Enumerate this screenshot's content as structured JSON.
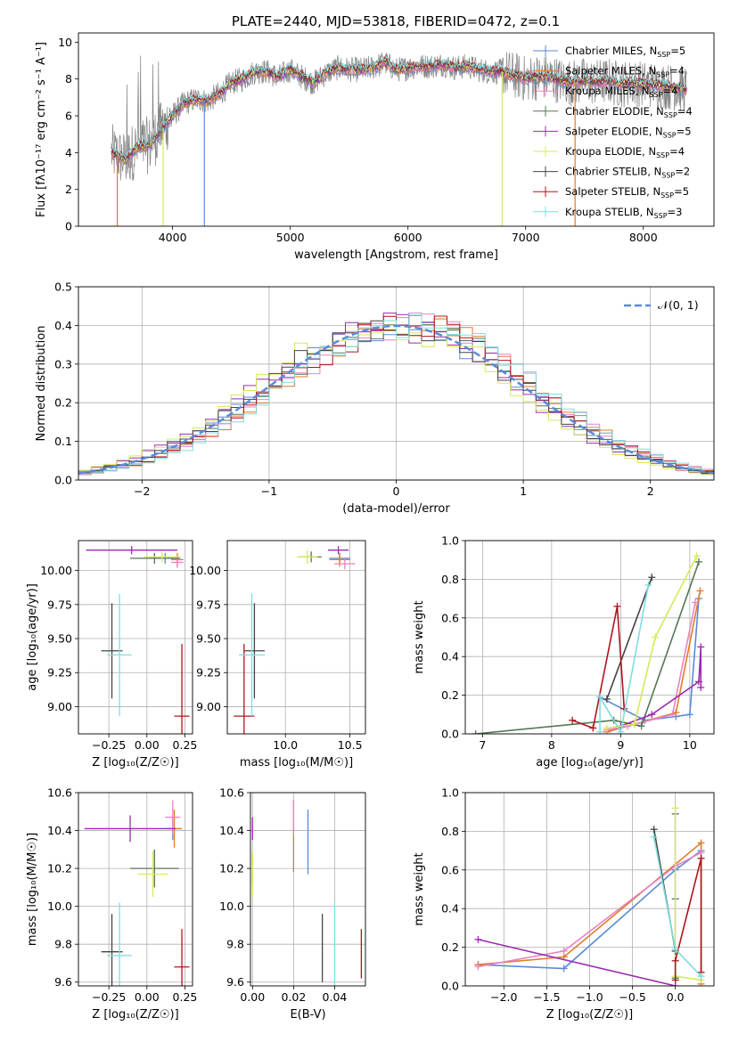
{
  "figure_title": "PLATE=2440, MJD=53818, FIBERID=0472, z=0.1",
  "series_colors": {
    "Chabrier MILES": "#5b8ad9",
    "Salpeter MILES": "#e07b29",
    "Kroupa MILES": "#e882c4",
    "Chabrier ELODIE": "#557755",
    "Salpeter ELODIE": "#9b2cb0",
    "Kroupa ELODIE": "#d6e85a",
    "Chabrier STELIB": "#444444",
    "Salpeter STELIB": "#b0141c",
    "Kroupa STELIB": "#7fdde0"
  },
  "chart_data": [
    {
      "id": "spectrum",
      "type": "line",
      "xlabel": "wavelength [Angstrom, rest frame]",
      "ylabel": "Flux [fλ10⁻¹⁷ erg cm⁻² s⁻¹ A⁻¹]",
      "xlim": [
        3200,
        8600
      ],
      "ylim": [
        0,
        10.5
      ],
      "xticks": [
        4000,
        5000,
        6000,
        7000,
        8000
      ],
      "yticks": [
        0,
        2,
        4,
        6,
        8,
        10
      ],
      "grid": false,
      "legend": "top-right",
      "legend_entries": [
        {
          "name": "Chabrier MILES",
          "nssp": "5",
          "color": "#5b8ad9"
        },
        {
          "name": "Salpeter MILES",
          "nssp": "4",
          "color": "#e07b29"
        },
        {
          "name": "Kroupa MILES",
          "nssp": "4",
          "color": "#e882c4"
        },
        {
          "name": "Chabrier ELODIE",
          "nssp": "4",
          "color": "#557755"
        },
        {
          "name": "Salpeter ELODIE",
          "nssp": "5",
          "color": "#9b2cb0"
        },
        {
          "name": "Kroupa ELODIE",
          "nssp": "4",
          "color": "#d6e85a"
        },
        {
          "name": "Chabrier STELIB",
          "nssp": "2",
          "color": "#444444"
        },
        {
          "name": "Salpeter STELIB",
          "nssp": "5",
          "color": "#b0141c"
        },
        {
          "name": "Kroupa STELIB",
          "nssp": "3",
          "color": "#7fdde0"
        }
      ],
      "data_color": "#808080",
      "continuum": [
        [
          3480,
          4.0
        ],
        [
          3600,
          3.6
        ],
        [
          3700,
          4.3
        ],
        [
          3800,
          4.4
        ],
        [
          3900,
          5.2
        ],
        [
          4000,
          6.0
        ],
        [
          4100,
          6.7
        ],
        [
          4200,
          6.9
        ],
        [
          4300,
          6.8
        ],
        [
          4400,
          7.2
        ],
        [
          4500,
          7.8
        ],
        [
          4600,
          8.0
        ],
        [
          4700,
          8.4
        ],
        [
          4800,
          8.4
        ],
        [
          4900,
          8.1
        ],
        [
          5000,
          8.5
        ],
        [
          5100,
          8.1
        ],
        [
          5200,
          7.8
        ],
        [
          5300,
          8.3
        ],
        [
          5400,
          8.6
        ],
        [
          5500,
          8.5
        ],
        [
          5600,
          8.5
        ],
        [
          5700,
          8.6
        ],
        [
          5800,
          8.9
        ],
        [
          5900,
          8.5
        ],
        [
          6000,
          8.6
        ],
        [
          6100,
          8.7
        ],
        [
          6200,
          8.7
        ],
        [
          6300,
          8.8
        ],
        [
          6400,
          8.6
        ],
        [
          6500,
          8.7
        ],
        [
          6600,
          8.5
        ],
        [
          6700,
          8.4
        ],
        [
          6800,
          8.4
        ],
        [
          6900,
          8.2
        ],
        [
          7000,
          8.0
        ],
        [
          7100,
          8.1
        ],
        [
          7200,
          8.1
        ],
        [
          7300,
          7.9
        ],
        [
          7400,
          7.8
        ],
        [
          7500,
          7.9
        ],
        [
          7600,
          7.8
        ],
        [
          7700,
          7.9
        ],
        [
          7800,
          7.7
        ],
        [
          7900,
          7.8
        ],
        [
          8000,
          7.7
        ],
        [
          8100,
          7.7
        ],
        [
          8200,
          7.6
        ],
        [
          8300,
          7.5
        ],
        [
          8370,
          7.4
        ]
      ],
      "spikes": [
        {
          "x": 3530,
          "color": "#e07b29"
        },
        {
          "x": 3920,
          "color": "#d6e85a"
        },
        {
          "x": 4270,
          "color": "#5b8ad9"
        },
        {
          "x": 6800,
          "color": "#d6e85a"
        },
        {
          "x": 7420,
          "color": "#e07b29"
        }
      ]
    },
    {
      "id": "residuals",
      "type": "histogram",
      "xlabel": "(data-model)/error",
      "ylabel": "Normed distribution",
      "xlim": [
        -2.5,
        2.5
      ],
      "ylim": [
        0,
        0.5
      ],
      "xticks": [
        -2,
        -1,
        0,
        1,
        2
      ],
      "yticks": [
        0.0,
        0.1,
        0.2,
        0.3,
        0.4,
        0.5
      ],
      "grid": true,
      "legend": "top-right",
      "gaussian_label": "𝒩(0, 1)",
      "gaussian_color": "#5b8ad9",
      "bin_width": 0.1
    },
    {
      "id": "z_age",
      "type": "scatter",
      "xlabel": "Z [log₁₀(Z/Z☉)]",
      "ylabel": "age  [log₁₀(age/yr)]",
      "xlim": [
        -0.45,
        0.3
      ],
      "ylim": [
        8.8,
        10.22
      ],
      "xticks": [
        -0.25,
        0.0,
        0.25
      ],
      "yticks": [
        9.0,
        9.25,
        9.5,
        9.75,
        10.0
      ],
      "grid": true,
      "points": [
        {
          "x": 0.12,
          "y": 10.09,
          "xerr": 0.1,
          "yerr": 0.04,
          "color": "#5b8ad9"
        },
        {
          "x": 0.2,
          "y": 10.08,
          "xerr": 0.04,
          "yerr": 0.05,
          "color": "#e07b29"
        },
        {
          "x": 0.2,
          "y": 10.06,
          "xerr": 0.04,
          "yerr": 0.04,
          "color": "#e882c4"
        },
        {
          "x": 0.05,
          "y": 10.09,
          "xerr": 0.16,
          "yerr": 0.04,
          "color": "#557755"
        },
        {
          "x": -0.1,
          "y": 10.15,
          "xerr": 0.3,
          "yerr": 0.03,
          "color": "#9b2cb0"
        },
        {
          "x": 0.1,
          "y": 10.1,
          "xerr": 0.12,
          "yerr": 0.04,
          "color": "#d6e85a"
        },
        {
          "x": -0.23,
          "y": 9.41,
          "xerr": 0.07,
          "yerr": 0.35,
          "color": "#444444"
        },
        {
          "x": 0.23,
          "y": 8.93,
          "xerr": 0.05,
          "yerr": 0.53,
          "color": "#b0141c"
        },
        {
          "x": -0.18,
          "y": 9.38,
          "xerr": 0.08,
          "yerr": 0.45,
          "color": "#7fdde0"
        }
      ]
    },
    {
      "id": "mass_age",
      "type": "scatter",
      "xlabel": "mass [log₁₀(M/M☉)]",
      "ylabel": "",
      "xlim": [
        9.55,
        10.62
      ],
      "ylim": [
        8.8,
        10.22
      ],
      "xticks": [
        10.0,
        10.5
      ],
      "yticks": [
        9.0,
        9.25,
        9.5,
        9.75,
        10.0
      ],
      "grid": true,
      "points": [
        {
          "x": 10.42,
          "y": 10.09,
          "xerr": 0.08,
          "yerr": 0.04,
          "color": "#5b8ad9"
        },
        {
          "x": 10.42,
          "y": 10.08,
          "xerr": 0.08,
          "yerr": 0.05,
          "color": "#e07b29"
        },
        {
          "x": 10.46,
          "y": 10.05,
          "xerr": 0.08,
          "yerr": 0.04,
          "color": "#e882c4"
        },
        {
          "x": 10.2,
          "y": 10.1,
          "xerr": 0.08,
          "yerr": 0.04,
          "color": "#557755"
        },
        {
          "x": 10.41,
          "y": 10.15,
          "xerr": 0.08,
          "yerr": 0.03,
          "color": "#9b2cb0"
        },
        {
          "x": 10.17,
          "y": 10.1,
          "xerr": 0.08,
          "yerr": 0.05,
          "color": "#d6e85a"
        },
        {
          "x": 9.76,
          "y": 9.41,
          "xerr": 0.08,
          "yerr": 0.35,
          "color": "#444444"
        },
        {
          "x": 9.68,
          "y": 8.93,
          "xerr": 0.08,
          "yerr": 0.53,
          "color": "#b0141c"
        },
        {
          "x": 9.74,
          "y": 9.38,
          "xerr": 0.1,
          "yerr": 0.45,
          "color": "#7fdde0"
        }
      ]
    },
    {
      "id": "z_mass",
      "type": "scatter",
      "xlabel": "Z [log₁₀(Z/Z☉)]",
      "ylabel": "mass [log₁₀(M/M☉)]",
      "xlim": [
        -0.45,
        0.3
      ],
      "ylim": [
        9.58,
        10.6
      ],
      "xticks": [
        -0.25,
        0.0,
        0.25
      ],
      "yticks": [
        9.6,
        9.8,
        10.0,
        10.2,
        10.4,
        10.6
      ],
      "grid": true,
      "points": [
        {
          "x": 0.17,
          "y": 10.41,
          "xerr": 0.02,
          "yerr": 0.06,
          "color": "#5b8ad9"
        },
        {
          "x": 0.18,
          "y": 10.41,
          "xerr": 0.05,
          "yerr": 0.1,
          "color": "#e07b29"
        },
        {
          "x": 0.17,
          "y": 10.47,
          "xerr": 0.05,
          "yerr": 0.09,
          "color": "#e882c4"
        },
        {
          "x": 0.05,
          "y": 10.2,
          "xerr": 0.16,
          "yerr": 0.1,
          "color": "#557755"
        },
        {
          "x": -0.11,
          "y": 10.41,
          "xerr": 0.3,
          "yerr": 0.07,
          "color": "#9b2cb0"
        },
        {
          "x": 0.04,
          "y": 10.17,
          "xerr": 0.1,
          "yerr": 0.12,
          "color": "#d6e85a"
        },
        {
          "x": -0.23,
          "y": 9.76,
          "xerr": 0.07,
          "yerr": 0.2,
          "color": "#444444"
        },
        {
          "x": 0.23,
          "y": 9.68,
          "xerr": 0.05,
          "yerr": 0.2,
          "color": "#b0141c"
        },
        {
          "x": -0.18,
          "y": 9.74,
          "xerr": 0.08,
          "yerr": 0.28,
          "color": "#7fdde0"
        }
      ]
    },
    {
      "id": "ebv_mass",
      "type": "scatter",
      "xlabel": "E(B-V)",
      "ylabel": "",
      "xlim": [
        -0.001,
        0.055
      ],
      "ylim": [
        9.58,
        10.6
      ],
      "xticks": [
        0.0,
        0.02,
        0.04
      ],
      "yticks": [
        9.6,
        9.8,
        10.0,
        10.2,
        10.4,
        10.6
      ],
      "grid": true,
      "points": [
        {
          "x": 0.027,
          "y": 10.34,
          "xerr": 0,
          "yerr": 0.17,
          "color": "#5b8ad9"
        },
        {
          "x": 0.02,
          "y": 10.37,
          "xerr": 0,
          "yerr": 0.19,
          "color": "#e07b29"
        },
        {
          "x": 0.02,
          "y": 10.47,
          "xerr": 0,
          "yerr": 0.09,
          "color": "#e882c4"
        },
        {
          "x": 0.0,
          "y": 10.2,
          "xerr": 0,
          "yerr": 0.09,
          "color": "#557755"
        },
        {
          "x": 0.0,
          "y": 10.41,
          "xerr": 0,
          "yerr": 0.06,
          "color": "#9b2cb0"
        },
        {
          "x": 0.0,
          "y": 10.17,
          "xerr": 0,
          "yerr": 0.12,
          "color": "#d6e85a"
        },
        {
          "x": 0.034,
          "y": 9.78,
          "xerr": 0,
          "yerr": 0.18,
          "color": "#444444"
        },
        {
          "x": 0.053,
          "y": 9.75,
          "xerr": 0,
          "yerr": 0.13,
          "color": "#b0141c"
        },
        {
          "x": 0.04,
          "y": 9.74,
          "xerr": 0,
          "yerr": 0.28,
          "color": "#7fdde0"
        }
      ]
    },
    {
      "id": "age_weight",
      "type": "line",
      "xlabel": "age  [log₁₀(age/yr)]",
      "ylabel": "mass weight",
      "xlim": [
        6.75,
        10.35
      ],
      "ylim": [
        0.0,
        1.0
      ],
      "xticks": [
        7,
        8,
        9,
        10
      ],
      "yticks": [
        0.0,
        0.2,
        0.4,
        0.6,
        0.8,
        1.0
      ],
      "grid": true,
      "series": [
        {
          "name": "Chabrier MILES",
          "color": "#5b8ad9",
          "points": [
            [
              8.7,
              0.19
            ],
            [
              9.35,
              0.07
            ],
            [
              9.8,
              0.09
            ],
            [
              10.0,
              0.1
            ],
            [
              10.13,
              0.7
            ]
          ]
        },
        {
          "name": "Salpeter MILES",
          "color": "#e07b29",
          "points": [
            [
              8.8,
              0.01
            ],
            [
              9.2,
              0.05
            ],
            [
              9.8,
              0.11
            ],
            [
              10.15,
              0.74
            ]
          ]
        },
        {
          "name": "Kroupa MILES",
          "color": "#e882c4",
          "points": [
            [
              8.8,
              0.02
            ],
            [
              9.1,
              0.04
            ],
            [
              9.75,
              0.1
            ],
            [
              10.08,
              0.68
            ]
          ]
        },
        {
          "name": "Chabrier ELODIE",
          "color": "#557755",
          "points": [
            [
              6.9,
              0.0
            ],
            [
              8.9,
              0.07
            ],
            [
              9.3,
              0.04
            ],
            [
              10.13,
              0.89
            ]
          ]
        },
        {
          "name": "Salpeter ELODIE",
          "color": "#9b2cb0",
          "points": [
            [
              9.0,
              0.04
            ],
            [
              9.45,
              0.1
            ],
            [
              10.13,
              0.27
            ],
            [
              10.16,
              0.45
            ],
            [
              10.16,
              0.24
            ]
          ]
        },
        {
          "name": "Kroupa ELODIE",
          "color": "#d6e85a",
          "points": [
            [
              8.8,
              0.03
            ],
            [
              9.2,
              0.05
            ],
            [
              9.5,
              0.5
            ],
            [
              10.1,
              0.92
            ]
          ]
        },
        {
          "name": "Chabrier STELIB",
          "color": "#444444",
          "points": [
            [
              8.8,
              0.18
            ],
            [
              9.45,
              0.81
            ]
          ]
        },
        {
          "name": "Salpeter STELIB",
          "color": "#b0141c",
          "points": [
            [
              8.3,
              0.07
            ],
            [
              8.6,
              0.03
            ],
            [
              8.95,
              0.66
            ],
            [
              9.05,
              0.13
            ]
          ]
        },
        {
          "name": "Kroupa STELIB",
          "color": "#7fdde0",
          "points": [
            [
              8.7,
              0.01
            ],
            [
              8.7,
              0.19
            ],
            [
              9.0,
              0.01
            ],
            [
              9.4,
              0.77
            ]
          ]
        }
      ]
    },
    {
      "id": "z_weight",
      "type": "line",
      "xlabel": "Z [log₁₀(Z/Z☉)]",
      "ylabel": "mass weight",
      "xlim": [
        -2.45,
        0.45
      ],
      "ylim": [
        0.0,
        1.0
      ],
      "xticks": [
        -2.0,
        -1.5,
        -1.0,
        -0.5,
        0.0
      ],
      "yticks": [
        0.0,
        0.2,
        0.4,
        0.6,
        0.8,
        1.0
      ],
      "grid": true,
      "series": [
        {
          "name": "Chabrier MILES",
          "color": "#5b8ad9",
          "points": [
            [
              -2.3,
              0.11
            ],
            [
              -1.3,
              0.09
            ],
            [
              0.0,
              0.6
            ],
            [
              0.3,
              0.7
            ]
          ]
        },
        {
          "name": "Salpeter MILES",
          "color": "#e07b29",
          "points": [
            [
              -2.3,
              0.11
            ],
            [
              -1.3,
              0.15
            ],
            [
              0.3,
              0.74
            ],
            [
              0.3,
              0.01
            ]
          ]
        },
        {
          "name": "Kroupa MILES",
          "color": "#e882c4",
          "points": [
            [
              -2.3,
              0.1
            ],
            [
              -1.3,
              0.18
            ],
            [
              0.0,
              0.62
            ],
            [
              0.3,
              0.69
            ]
          ]
        },
        {
          "name": "Chabrier ELODIE",
          "color": "#557755",
          "points": [
            [
              0.0,
              0.89
            ],
            [
              0.0,
              0.45
            ],
            [
              0.0,
              0.04
            ]
          ]
        },
        {
          "name": "Salpeter ELODIE",
          "color": "#9b2cb0",
          "points": [
            [
              -2.3,
              0.24
            ],
            [
              0.0,
              0.0
            ]
          ]
        },
        {
          "name": "Kroupa ELODIE",
          "color": "#d6e85a",
          "points": [
            [
              0.0,
              0.92
            ],
            [
              0.0,
              0.05
            ],
            [
              0.3,
              0.03
            ]
          ]
        },
        {
          "name": "Chabrier STELIB",
          "color": "#444444",
          "points": [
            [
              -0.25,
              0.81
            ],
            [
              0.0,
              0.18
            ]
          ]
        },
        {
          "name": "Salpeter STELIB",
          "color": "#b0141c",
          "points": [
            [
              0.0,
              0.03
            ],
            [
              0.0,
              0.13
            ],
            [
              0.3,
              0.66
            ],
            [
              0.3,
              0.07
            ]
          ]
        },
        {
          "name": "Kroupa STELIB",
          "color": "#7fdde0",
          "points": [
            [
              -0.25,
              0.77
            ],
            [
              0.0,
              0.19
            ],
            [
              0.3,
              0.05
            ]
          ]
        }
      ]
    }
  ]
}
